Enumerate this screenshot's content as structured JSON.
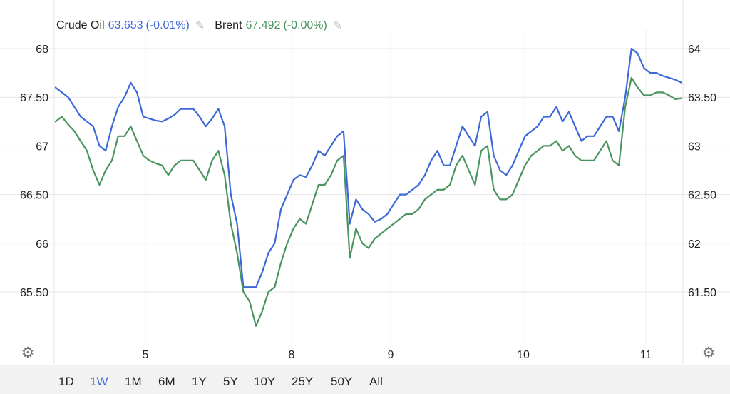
{
  "legend": {
    "series": [
      {
        "name": "Crude Oil",
        "value": "63.653",
        "change": "(-0.01%)",
        "color": "#3d68d8"
      },
      {
        "name": "Brent",
        "value": "67.492",
        "change": "(-0.00%)",
        "color": "#4a9460"
      }
    ],
    "edit_icon": "pencil-icon"
  },
  "settings_icon": "gear-icon",
  "range_buttons": [
    "1D",
    "1W",
    "1M",
    "6M",
    "1Y",
    "5Y",
    "10Y",
    "25Y",
    "50Y",
    "All"
  ],
  "active_range": "1W",
  "chart_data": {
    "type": "line",
    "x_ticks": [
      "5",
      "8",
      "9",
      "10",
      "11"
    ],
    "y_left": {
      "ticks": [
        "65.50",
        "66",
        "66.50",
        "67",
        "67.50",
        "68"
      ],
      "range": [
        64.75,
        68.2
      ],
      "series": "Brent"
    },
    "y_right": {
      "ticks": [
        "61.50",
        "62",
        "62.50",
        "63",
        "63.50",
        "64"
      ],
      "range": [
        60.75,
        64.2
      ],
      "series": "Crude Oil"
    },
    "grid": true,
    "x_range": [
      0,
      100
    ],
    "series": [
      {
        "name": "Crude Oil",
        "color": "#3d68d8",
        "axis": "right",
        "x": [
          0,
          1,
          2,
          3,
          4,
          5,
          6,
          7,
          8,
          9,
          10,
          11,
          12,
          13,
          14,
          15,
          16,
          17,
          18,
          19,
          20,
          21,
          22,
          23,
          24,
          25,
          26,
          27,
          28,
          29,
          30,
          31,
          32,
          33,
          34,
          35,
          36,
          37,
          38,
          39,
          40,
          41,
          42,
          43,
          44,
          45,
          46,
          47,
          48,
          49,
          50,
          51,
          52,
          53,
          54,
          55,
          56,
          57,
          58,
          59,
          60,
          61,
          62,
          63,
          64,
          65,
          66,
          67,
          68,
          69,
          70,
          71,
          72,
          73,
          74,
          75,
          76,
          77,
          78,
          79,
          80,
          81,
          82,
          83,
          84,
          85,
          86,
          87,
          88,
          89,
          90,
          91,
          92,
          93,
          94,
          95,
          96,
          97,
          98,
          99,
          100
        ],
        "values": [
          63.6,
          63.55,
          63.5,
          63.4,
          63.3,
          63.25,
          63.2,
          63.0,
          62.95,
          63.2,
          63.4,
          63.5,
          63.65,
          63.55,
          63.3,
          63.28,
          63.26,
          63.25,
          63.28,
          63.32,
          63.38,
          63.38,
          63.38,
          63.3,
          63.2,
          63.28,
          63.38,
          63.2,
          62.5,
          62.2,
          61.55,
          61.55,
          61.55,
          61.7,
          61.9,
          62.0,
          62.35,
          62.5,
          62.65,
          62.7,
          62.68,
          62.8,
          62.95,
          62.9,
          63.0,
          63.1,
          63.15,
          62.2,
          62.45,
          62.35,
          62.3,
          62.22,
          62.25,
          62.3,
          62.4,
          62.5,
          62.5,
          62.55,
          62.6,
          62.7,
          62.85,
          62.95,
          62.8,
          62.8,
          63.0,
          63.2,
          63.1,
          63.0,
          63.3,
          63.35,
          62.9,
          62.75,
          62.7,
          62.8,
          62.95,
          63.1,
          63.15,
          63.2,
          63.3,
          63.3,
          63.4,
          63.25,
          63.35,
          63.2,
          63.05,
          63.1,
          63.1,
          63.2,
          63.3,
          63.3,
          63.15,
          63.5,
          64.0,
          63.95,
          63.8,
          63.75,
          63.75,
          63.72,
          63.7,
          63.68,
          63.65
        ]
      },
      {
        "name": "Brent",
        "color": "#4a9460",
        "axis": "left",
        "x": [
          0,
          1,
          2,
          3,
          4,
          5,
          6,
          7,
          8,
          9,
          10,
          11,
          12,
          13,
          14,
          15,
          16,
          17,
          18,
          19,
          20,
          21,
          22,
          23,
          24,
          25,
          26,
          27,
          28,
          29,
          30,
          31,
          32,
          33,
          34,
          35,
          36,
          37,
          38,
          39,
          40,
          41,
          42,
          43,
          44,
          45,
          46,
          47,
          48,
          49,
          50,
          51,
          52,
          53,
          54,
          55,
          56,
          57,
          58,
          59,
          60,
          61,
          62,
          63,
          64,
          65,
          66,
          67,
          68,
          69,
          70,
          71,
          72,
          73,
          74,
          75,
          76,
          77,
          78,
          79,
          80,
          81,
          82,
          83,
          84,
          85,
          86,
          87,
          88,
          89,
          90,
          91,
          92,
          93,
          94,
          95,
          96,
          97,
          98,
          99,
          100
        ],
        "values": [
          67.25,
          67.3,
          67.22,
          67.15,
          67.05,
          66.95,
          66.75,
          66.6,
          66.75,
          66.85,
          67.1,
          67.1,
          67.2,
          67.05,
          66.9,
          66.85,
          66.82,
          66.8,
          66.7,
          66.8,
          66.85,
          66.85,
          66.85,
          66.75,
          66.65,
          66.85,
          66.95,
          66.7,
          66.2,
          65.9,
          65.5,
          65.4,
          65.15,
          65.3,
          65.5,
          65.55,
          65.8,
          66.0,
          66.15,
          66.25,
          66.2,
          66.4,
          66.6,
          66.6,
          66.7,
          66.85,
          66.9,
          65.85,
          66.15,
          66.0,
          65.95,
          66.05,
          66.1,
          66.15,
          66.2,
          66.25,
          66.3,
          66.3,
          66.35,
          66.45,
          66.5,
          66.55,
          66.55,
          66.6,
          66.8,
          66.9,
          66.75,
          66.6,
          66.95,
          67.0,
          66.55,
          66.45,
          66.45,
          66.5,
          66.65,
          66.8,
          66.9,
          66.95,
          67.0,
          67.0,
          67.05,
          66.95,
          67.0,
          66.9,
          66.85,
          66.85,
          66.85,
          66.95,
          67.05,
          66.85,
          66.8,
          67.4,
          67.7,
          67.6,
          67.52,
          67.52,
          67.55,
          67.55,
          67.52,
          67.48,
          67.49
        ]
      }
    ]
  }
}
